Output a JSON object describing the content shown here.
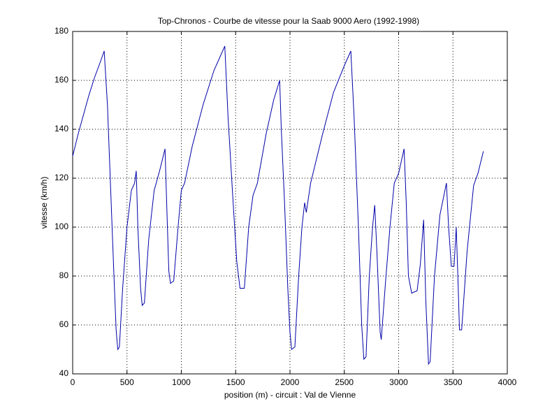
{
  "chart_data": {
    "type": "line",
    "title": "Top-Chronos - Courbe de vitesse pour la Saab 9000 Aero (1992-1998)",
    "x_label": "position (m) - circuit : Val de Vienne",
    "y_label": "vitesse (km/h)",
    "xlim": [
      0,
      4000
    ],
    "ylim": [
      40,
      180
    ],
    "xticks": [
      0,
      500,
      1000,
      1500,
      2000,
      2500,
      3000,
      3500,
      4000
    ],
    "yticks": [
      40,
      60,
      80,
      100,
      120,
      140,
      160,
      180
    ],
    "grid": true,
    "x": [
      0,
      50,
      100,
      150,
      200,
      250,
      290,
      320,
      350,
      380,
      400,
      415,
      430,
      460,
      500,
      540,
      570,
      585,
      600,
      625,
      640,
      660,
      700,
      750,
      800,
      850,
      865,
      885,
      900,
      930,
      970,
      1000,
      1030,
      1100,
      1200,
      1300,
      1400,
      1430,
      1470,
      1510,
      1540,
      1580,
      1620,
      1660,
      1700,
      1780,
      1850,
      1905,
      1920,
      1950,
      1980,
      2000,
      2015,
      2045,
      2080,
      2110,
      2135,
      2150,
      2190,
      2300,
      2400,
      2500,
      2560,
      2590,
      2630,
      2660,
      2680,
      2700,
      2730,
      2760,
      2780,
      2800,
      2830,
      2840,
      2880,
      2920,
      2960,
      3000,
      3050,
      3070,
      3090,
      3120,
      3170,
      3200,
      3230,
      3250,
      3275,
      3290,
      3330,
      3380,
      3440,
      3460,
      3485,
      3510,
      3530,
      3545,
      3560,
      3580,
      3630,
      3690,
      3730,
      3780
    ],
    "series": [
      {
        "name": "vitesse",
        "color": "#0000a8",
        "values": [
          129,
          138,
          146,
          154,
          161,
          167,
          172,
          150,
          115,
          80,
          58,
          50,
          51,
          75,
          100,
          115,
          118,
          123,
          100,
          75,
          68,
          69,
          95,
          115,
          123,
          132,
          110,
          82,
          77,
          78,
          100,
          115,
          118,
          133,
          150,
          164,
          174,
          145,
          115,
          86,
          75,
          75,
          100,
          113,
          118,
          138,
          152,
          160,
          140,
          110,
          75,
          57,
          50,
          51,
          80,
          100,
          110,
          106,
          118,
          138,
          155,
          166,
          172,
          145,
          100,
          60,
          46,
          47,
          80,
          100,
          109,
          90,
          57,
          54,
          78,
          100,
          118,
          122,
          132,
          110,
          80,
          73,
          74,
          85,
          103,
          70,
          44,
          45,
          80,
          105,
          118,
          100,
          84,
          84,
          100,
          80,
          58,
          58,
          90,
          117,
          122,
          131
        ]
      }
    ]
  }
}
